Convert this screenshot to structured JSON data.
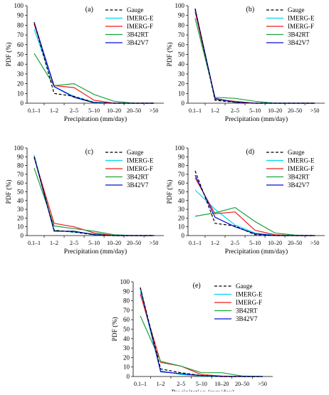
{
  "chart_data": [
    {
      "type": "line",
      "panel_label": "(a)",
      "categories": [
        "0.1–1",
        "1–2",
        "2–5",
        "5–10",
        "10–20",
        "20–50",
        ">50"
      ],
      "xlabel": "Precipitation (mm/day)",
      "ylabel": "PDF (%)",
      "ylim": [
        0,
        100
      ],
      "legend_position": "top-right",
      "series": [
        {
          "name": "Gauge",
          "values": [
            83,
            10,
            7,
            0.5,
            0,
            0,
            0
          ]
        },
        {
          "name": "IMERG-E",
          "values": [
            76,
            17,
            7,
            1,
            0,
            0,
            0
          ]
        },
        {
          "name": "IMERG-F",
          "values": [
            81,
            18,
            16,
            3,
            0,
            0,
            0
          ]
        },
        {
          "name": "3B42RT",
          "values": [
            51,
            18,
            20,
            9,
            2,
            0,
            0
          ]
        },
        {
          "name": "3B42V7",
          "values": [
            83,
            17,
            6,
            0.5,
            0,
            0,
            0
          ]
        }
      ]
    },
    {
      "type": "line",
      "panel_label": "(b)",
      "categories": [
        "0.1–1",
        "1–2",
        "2–5",
        "5–10",
        "10–20",
        "20–50",
        ">50"
      ],
      "xlabel": "Precipitation (mm/day)",
      "ylabel": "PDF (%)",
      "ylim": [
        0,
        100
      ],
      "legend_position": "top-right",
      "series": [
        {
          "name": "Gauge",
          "values": [
            97,
            3,
            1,
            0,
            0,
            0,
            0
          ]
        },
        {
          "name": "IMERG-E",
          "values": [
            96,
            4,
            1,
            0,
            0,
            0,
            0
          ]
        },
        {
          "name": "IMERG-F",
          "values": [
            94,
            4,
            2,
            0,
            0,
            0,
            0
          ]
        },
        {
          "name": "3B42RT",
          "values": [
            87,
            6,
            5,
            2,
            0,
            0,
            0
          ]
        },
        {
          "name": "3B42V7",
          "values": [
            97,
            5,
            1,
            0,
            0,
            0,
            0
          ]
        }
      ]
    },
    {
      "type": "line",
      "panel_label": "(c)",
      "categories": [
        "0.1–1",
        "1–2",
        "2–5",
        "5–10",
        "10–20",
        "20–50",
        ">50"
      ],
      "xlabel": "Precipitation (mm/day)",
      "ylabel": "PDF (%)",
      "ylim": [
        0,
        100
      ],
      "legend_position": "top-right",
      "series": [
        {
          "name": "Gauge",
          "values": [
            90,
            6,
            4,
            1,
            0,
            0,
            0
          ]
        },
        {
          "name": "IMERG-E",
          "values": [
            92,
            6,
            4,
            2,
            0,
            0,
            0
          ]
        },
        {
          "name": "IMERG-F",
          "values": [
            89,
            14,
            10,
            3,
            0,
            0,
            0
          ]
        },
        {
          "name": "3B42RT",
          "values": [
            77,
            11,
            8,
            5,
            1,
            0,
            0
          ]
        },
        {
          "name": "3B42V7",
          "values": [
            90,
            5,
            5,
            1,
            0,
            0,
            0
          ]
        }
      ]
    },
    {
      "type": "line",
      "panel_label": "(d)",
      "categories": [
        "0.1–1",
        "1–2",
        "2–5",
        "5–10",
        "10–20",
        "20–50",
        ">50"
      ],
      "xlabel": "Precipitation (mm/day)",
      "ylabel": "PDF (%)",
      "ylim": [
        0,
        100
      ],
      "legend_position": "top-right",
      "series": [
        {
          "name": "Gauge",
          "values": [
            74,
            14,
            11,
            1,
            0,
            0,
            0
          ]
        },
        {
          "name": "IMERG-E",
          "values": [
            52,
            30,
            12,
            3,
            0.5,
            0,
            0
          ]
        },
        {
          "name": "IMERG-F",
          "values": [
            66,
            25,
            27,
            6,
            1,
            0,
            0
          ]
        },
        {
          "name": "3B42RT",
          "values": [
            22,
            26,
            32,
            16,
            3,
            0.5,
            0
          ]
        },
        {
          "name": "3B42V7",
          "values": [
            69,
            21,
            10,
            2,
            0,
            0,
            0
          ]
        }
      ]
    },
    {
      "type": "line",
      "panel_label": "(e)",
      "categories": [
        "0.1–1",
        "1–2",
        "2–5",
        "5–10",
        "10–20",
        "20–50",
        ">50"
      ],
      "xlabel": "Precipitation (mm/day)",
      "ylabel": "PDF (%)",
      "ylim": [
        0,
        100
      ],
      "legend_position": "top-right",
      "series": [
        {
          "name": "Gauge",
          "values": [
            94,
            8,
            4,
            1,
            0,
            0,
            0
          ]
        },
        {
          "name": "IMERG-E",
          "values": [
            90,
            6,
            2,
            0.5,
            0,
            0,
            0
          ]
        },
        {
          "name": "IMERG-F",
          "values": [
            87,
            15,
            11,
            2,
            0.5,
            0,
            0
          ]
        },
        {
          "name": "3B42RT",
          "values": [
            64,
            16,
            11,
            4,
            4,
            0.5,
            0
          ]
        },
        {
          "name": "3B42V7",
          "values": [
            94,
            5,
            3,
            1,
            0,
            0,
            0
          ]
        }
      ]
    }
  ],
  "yticks": [
    0,
    10,
    20,
    30,
    40,
    50,
    60,
    70,
    80,
    90,
    100
  ],
  "colors": {
    "Gauge": "#000000",
    "IMERG-E": "#00d8f0",
    "IMERG-F": "#ee1c1c",
    "3B42RT": "#19a33c",
    "3B42V7": "#0a0ad6"
  },
  "dashed_series": [
    "Gauge"
  ]
}
